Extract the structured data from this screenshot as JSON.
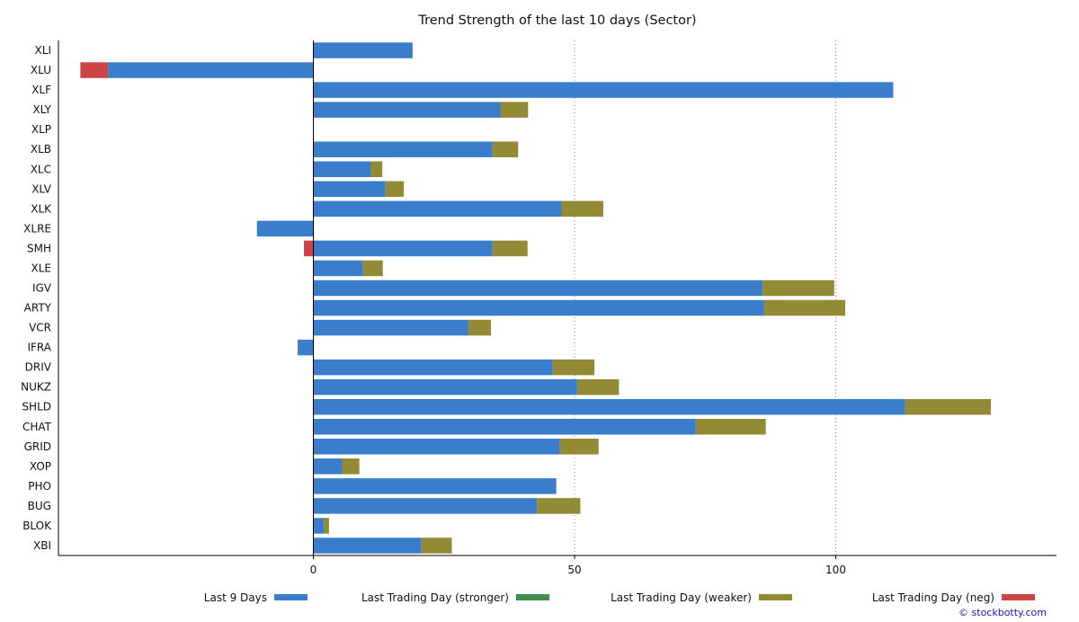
{
  "chart_data": {
    "type": "bar",
    "orientation": "horizontal",
    "stacked": true,
    "title": "Trend Strength of the last 10 days (Sector)",
    "xlabel": "",
    "ylabel": "",
    "xlim": [
      -45,
      140
    ],
    "xticks": [
      0,
      50,
      100
    ],
    "grid": "vertical dotted at x ticks",
    "categories": [
      "XLI",
      "XLU",
      "XLF",
      "XLY",
      "XLP",
      "XLB",
      "XLC",
      "XLV",
      "XLK",
      "XLRE",
      "SMH",
      "XLE",
      "IGV",
      "ARTY",
      "VCR",
      "IFRA",
      "DRIV",
      "NUKZ",
      "SHLD",
      "CHAT",
      "GRID",
      "XOP",
      "PHO",
      "BUG",
      "BLOK",
      "XBI"
    ],
    "series": [
      {
        "name": "Last 9 Days",
        "color": "#3a7dcb",
        "values": [
          19,
          -39.3,
          111,
          35.8,
          0,
          34.3,
          11,
          13.8,
          47.5,
          -10.8,
          34.3,
          9.5,
          86,
          86.3,
          29.7,
          -3,
          45.8,
          50.5,
          113.3,
          73.2,
          47.2,
          5.5,
          46.5,
          42.8,
          2,
          20.7
        ]
      },
      {
        "name": "Last Trading Day (stronger)",
        "color": "#3f8f4f",
        "values": [
          0,
          0,
          0,
          0,
          0,
          0,
          0,
          0,
          0,
          0,
          0,
          0,
          0,
          0,
          0,
          0,
          0,
          0,
          0,
          0,
          0,
          0,
          0,
          0,
          0,
          0
        ]
      },
      {
        "name": "Last Trading Day (weaker)",
        "color": "#938a35",
        "values": [
          0,
          0,
          0,
          5.3,
          0,
          4.9,
          2.2,
          3.5,
          8,
          0,
          6.7,
          3.8,
          13.7,
          15.5,
          4.3,
          0,
          8,
          8,
          16.4,
          13.4,
          7.4,
          3.3,
          0,
          8.3,
          1,
          5.8
        ]
      },
      {
        "name": "Last Trading Day (neg)",
        "color": "#cc4444",
        "values": [
          0,
          -5.3,
          0,
          0,
          0,
          0,
          0,
          0,
          0,
          0,
          -1.8,
          0,
          0,
          0,
          0,
          0,
          0,
          0,
          0,
          0,
          0,
          0,
          0,
          0,
          0,
          0
        ]
      }
    ],
    "legend_placement": "bottom"
  },
  "credit": "© stockbotty.com"
}
